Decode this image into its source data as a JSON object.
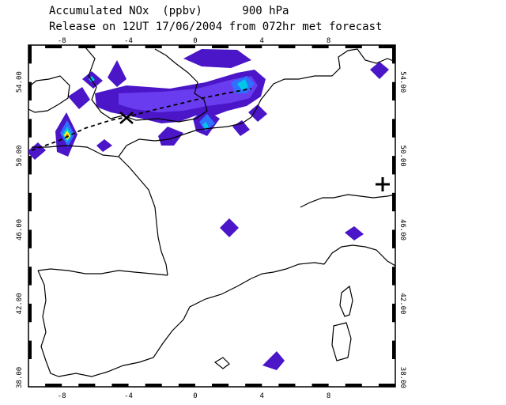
{
  "header": {
    "line1": "Accumulated NOx  (ppbv)      900 hPa",
    "line2": "Release on 12UT 17/06/2004 from 072hr met forecast"
  },
  "map": {
    "lon_range": [
      -10,
      12
    ],
    "lat_range": [
      37.5,
      56
    ],
    "lon_ticks": [
      "-8",
      "-4",
      "0",
      "4",
      "8"
    ],
    "lat_ticks_left": [
      "54.00",
      "50.00",
      "46.00",
      "42.00",
      "38.00"
    ],
    "lat_ticks_right": [
      "54.00",
      "50.00",
      "46.00",
      "42.00",
      "38.00"
    ],
    "plume_colors": [
      "#4b16c8",
      "#6a3cf0",
      "#2d72ff",
      "#00c8e6",
      "#ffff00",
      "#ff3a00"
    ],
    "release_marker": "plus-icon"
  }
}
